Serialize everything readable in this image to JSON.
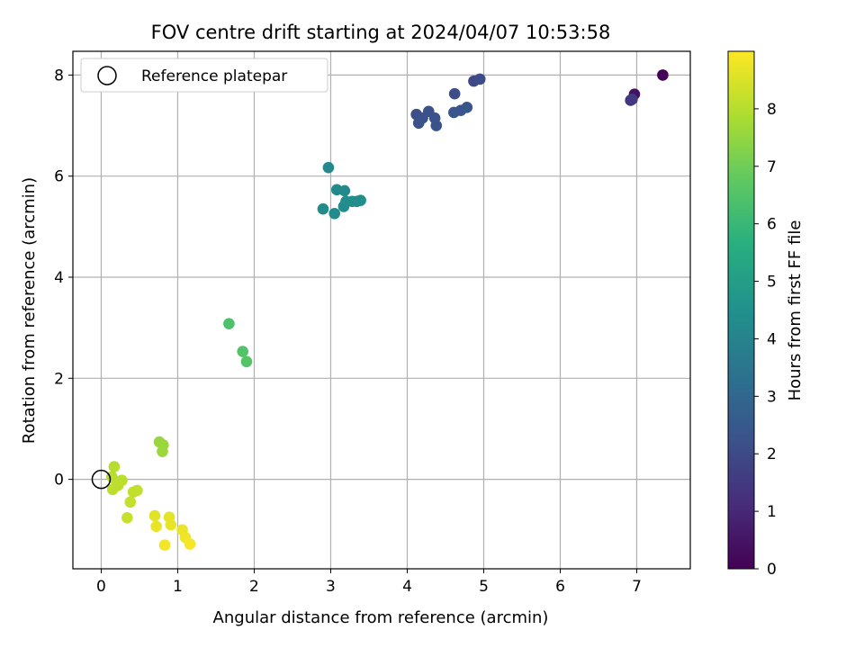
{
  "chart_data": {
    "type": "scatter",
    "title": "FOV centre drift starting at 2024/04/07 10:53:58",
    "xlabel": "Angular distance from reference (arcmin)",
    "ylabel": "Rotation from reference (arcmin)",
    "colorbar_label": "Hours from first FF file",
    "xlim": [
      -0.37,
      7.7
    ],
    "ylim": [
      -1.77,
      8.47
    ],
    "x_ticks": [
      0,
      1,
      2,
      3,
      4,
      5,
      6,
      7
    ],
    "y_ticks": [
      0,
      2,
      4,
      6,
      8
    ],
    "colorbar_range": [
      0,
      9.0
    ],
    "colorbar_ticks": [
      0,
      1,
      2,
      3,
      4,
      5,
      6,
      7,
      8
    ],
    "colormap": "viridis",
    "grid": true,
    "legend": {
      "location": "top-left",
      "label": "Reference platepar"
    },
    "reference_point": {
      "x": 0,
      "y": 0
    },
    "points": [
      {
        "x": 7.34,
        "y": 8.0,
        "c": 0.05
      },
      {
        "x": 6.97,
        "y": 7.62,
        "c": 0.4
      },
      {
        "x": 6.92,
        "y": 7.5,
        "c": 1.3
      },
      {
        "x": 6.94,
        "y": 7.52,
        "c": 1.5
      },
      {
        "x": 4.87,
        "y": 7.88,
        "c": 2.0
      },
      {
        "x": 4.95,
        "y": 7.92,
        "c": 2.05
      },
      {
        "x": 4.62,
        "y": 7.63,
        "c": 2.1
      },
      {
        "x": 4.12,
        "y": 7.22,
        "c": 2.15
      },
      {
        "x": 4.28,
        "y": 7.28,
        "c": 2.2
      },
      {
        "x": 4.2,
        "y": 7.15,
        "c": 2.2
      },
      {
        "x": 4.15,
        "y": 7.05,
        "c": 2.25
      },
      {
        "x": 4.36,
        "y": 7.15,
        "c": 2.3
      },
      {
        "x": 4.38,
        "y": 7.0,
        "c": 2.3
      },
      {
        "x": 4.61,
        "y": 7.26,
        "c": 2.35
      },
      {
        "x": 4.7,
        "y": 7.3,
        "c": 2.35
      },
      {
        "x": 4.78,
        "y": 7.36,
        "c": 2.4
      },
      {
        "x": 2.97,
        "y": 6.17,
        "c": 4.2
      },
      {
        "x": 3.08,
        "y": 5.73,
        "c": 4.25
      },
      {
        "x": 3.18,
        "y": 5.71,
        "c": 4.25
      },
      {
        "x": 2.9,
        "y": 5.35,
        "c": 4.3
      },
      {
        "x": 3.05,
        "y": 5.26,
        "c": 4.3
      },
      {
        "x": 3.17,
        "y": 5.4,
        "c": 4.35
      },
      {
        "x": 3.2,
        "y": 5.5,
        "c": 4.35
      },
      {
        "x": 3.28,
        "y": 5.5,
        "c": 4.4
      },
      {
        "x": 3.34,
        "y": 5.5,
        "c": 4.4
      },
      {
        "x": 3.39,
        "y": 5.52,
        "c": 4.4
      },
      {
        "x": 1.67,
        "y": 3.08,
        "c": 6.4
      },
      {
        "x": 1.85,
        "y": 2.53,
        "c": 6.5
      },
      {
        "x": 1.9,
        "y": 2.33,
        "c": 6.55
      },
      {
        "x": 0.76,
        "y": 0.74,
        "c": 7.6
      },
      {
        "x": 0.81,
        "y": 0.68,
        "c": 7.6
      },
      {
        "x": 0.8,
        "y": 0.55,
        "c": 7.65
      },
      {
        "x": 0.17,
        "y": 0.25,
        "c": 8.0
      },
      {
        "x": 0.14,
        "y": 0.05,
        "c": 8.0
      },
      {
        "x": 0.2,
        "y": -0.05,
        "c": 8.05
      },
      {
        "x": 0.27,
        "y": -0.02,
        "c": 8.05
      },
      {
        "x": 0.22,
        "y": -0.12,
        "c": 8.1
      },
      {
        "x": 0.15,
        "y": -0.2,
        "c": 8.1
      },
      {
        "x": 0.47,
        "y": -0.22,
        "c": 8.15
      },
      {
        "x": 0.42,
        "y": -0.25,
        "c": 8.15
      },
      {
        "x": 0.38,
        "y": -0.45,
        "c": 8.2
      },
      {
        "x": 0.34,
        "y": -0.76,
        "c": 8.25
      },
      {
        "x": 0.7,
        "y": -0.72,
        "c": 8.6
      },
      {
        "x": 0.89,
        "y": -0.75,
        "c": 8.65
      },
      {
        "x": 0.72,
        "y": -0.93,
        "c": 8.7
      },
      {
        "x": 0.91,
        "y": -0.9,
        "c": 8.7
      },
      {
        "x": 1.06,
        "y": -1.0,
        "c": 8.75
      },
      {
        "x": 1.1,
        "y": -1.15,
        "c": 8.8
      },
      {
        "x": 0.83,
        "y": -1.3,
        "c": 8.85
      },
      {
        "x": 1.16,
        "y": -1.28,
        "c": 8.9
      }
    ]
  },
  "colors": {
    "grid": "#b0b0b0",
    "axes": "#000000",
    "legend_border": "#cccccc"
  }
}
